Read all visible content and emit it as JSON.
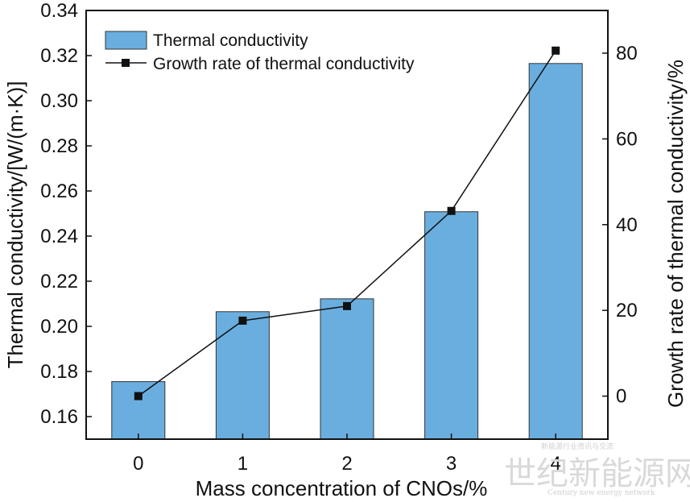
{
  "chart_data": {
    "type": "bar+line",
    "categories": [
      "0",
      "1",
      "2",
      "3",
      "4"
    ],
    "series": [
      {
        "name": "Thermal conductivity",
        "kind": "bar",
        "axis": "left",
        "values": [
          0.1755,
          0.2065,
          0.2122,
          0.2508,
          0.3165
        ]
      },
      {
        "name": "Growth rate of thermal conductivity",
        "kind": "line",
        "axis": "right",
        "values": [
          0,
          17.6,
          21.0,
          43.2,
          80.6
        ]
      }
    ],
    "xlabel": "Mass concentration of CNOs/%",
    "ylabel_left": "Thermal conductivity/[W/(m·K)]",
    "ylabel_right": "Growth rate of thermal conductivity/%",
    "ylim_left": [
      0.15,
      0.34
    ],
    "yticks_left": [
      "0.16",
      "0.18",
      "0.20",
      "0.22",
      "0.24",
      "0.26",
      "0.28",
      "0.30",
      "0.32",
      "0.34"
    ],
    "ylim_right": [
      -10.04,
      89.96
    ],
    "yticks_right": [
      "0",
      "20",
      "40",
      "60",
      "80"
    ],
    "legend_position": "top-left",
    "grid": false,
    "colors": {
      "bar": "#6aaedf",
      "bar_edge": "#333333",
      "line": "#111111"
    }
  },
  "watermark": {
    "brand": "世纪新能源网",
    "english": "Century new energy network",
    "tag": "新能源行业资讯与交流"
  }
}
